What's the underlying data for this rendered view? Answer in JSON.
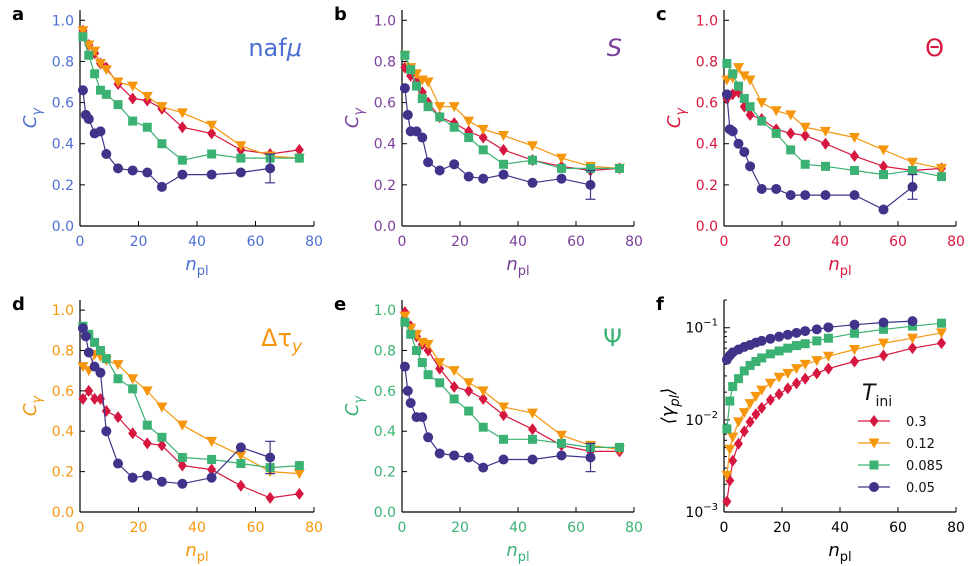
{
  "legend": {
    "title": "T",
    "title_sub": "ini",
    "entries": [
      "0.3",
      "0.12",
      "0.085",
      "0.05"
    ]
  },
  "series_colors": [
    "#d6173f",
    "#f5960d",
    "#3bb273",
    "#3f3489"
  ],
  "series_markers": [
    "diamond",
    "triangle-down",
    "square",
    "circle"
  ],
  "chart_data": [
    {
      "type": "line",
      "panel": "a",
      "title": "naf",
      "title_suffix": "μ",
      "color": "#4d6fd4",
      "xlabel": "n",
      "xlabel_sub": "pl",
      "ylabel": "C",
      "ylabel_sub": "γ",
      "xlim": [
        0,
        80
      ],
      "ylim": [
        0,
        1.05
      ],
      "xticks": [
        "0",
        "20",
        "40",
        "60",
        "80"
      ],
      "yticks": [
        "0.0",
        "0.2",
        "0.4",
        "0.6",
        "0.8",
        "1.0"
      ],
      "series": [
        {
          "x": [
            1,
            3,
            5,
            7,
            9,
            13,
            18,
            23,
            28,
            35,
            45,
            55,
            65,
            75
          ],
          "y": [
            0.95,
            0.88,
            0.84,
            0.79,
            0.77,
            0.69,
            0.62,
            0.61,
            0.57,
            0.48,
            0.45,
            0.37,
            0.35,
            0.37
          ]
        },
        {
          "x": [
            1,
            3,
            5,
            7,
            9,
            13,
            18,
            23,
            28,
            35,
            45,
            55,
            65,
            75
          ],
          "y": [
            0.95,
            0.88,
            0.85,
            0.79,
            0.76,
            0.7,
            0.68,
            0.63,
            0.58,
            0.55,
            0.49,
            0.39,
            0.34,
            0.33
          ]
        },
        {
          "x": [
            1,
            3,
            5,
            7,
            9,
            13,
            18,
            23,
            28,
            35,
            45,
            55,
            65,
            75
          ],
          "y": [
            0.92,
            0.83,
            0.74,
            0.66,
            0.64,
            0.59,
            0.51,
            0.48,
            0.4,
            0.32,
            0.35,
            0.33,
            0.33,
            0.33
          ]
        },
        {
          "x": [
            1,
            2,
            3,
            5,
            7,
            9,
            13,
            18,
            23,
            28,
            35,
            45,
            55,
            65
          ],
          "y": [
            0.66,
            0.54,
            0.52,
            0.45,
            0.46,
            0.35,
            0.28,
            0.27,
            0.26,
            0.19,
            0.25,
            0.25,
            0.26,
            0.28
          ],
          "error_last": 0.07
        }
      ]
    },
    {
      "type": "line",
      "panel": "b",
      "title": "S",
      "title_suffix": "",
      "color": "#7b3f9c",
      "xlabel": "n",
      "xlabel_sub": "pl",
      "ylabel": "C",
      "ylabel_sub": "γ",
      "xlim": [
        0,
        80
      ],
      "ylim": [
        0,
        1.05
      ],
      "xticks": [
        "0",
        "20",
        "40",
        "60",
        "80"
      ],
      "yticks": [
        "0.0",
        "0.2",
        "0.4",
        "0.6",
        "0.8",
        "1.0"
      ],
      "series": [
        {
          "x": [
            1,
            3,
            5,
            7,
            9,
            13,
            18,
            23,
            28,
            35,
            45,
            55,
            65,
            75
          ],
          "y": [
            0.77,
            0.73,
            0.7,
            0.65,
            0.6,
            0.53,
            0.5,
            0.46,
            0.43,
            0.37,
            0.32,
            0.29,
            0.27,
            0.28
          ]
        },
        {
          "x": [
            1,
            3,
            5,
            7,
            9,
            13,
            18,
            23,
            28,
            35,
            45,
            55,
            65,
            75
          ],
          "y": [
            0.83,
            0.77,
            0.74,
            0.71,
            0.7,
            0.58,
            0.58,
            0.51,
            0.47,
            0.44,
            0.39,
            0.33,
            0.29,
            0.28
          ]
        },
        {
          "x": [
            1,
            3,
            5,
            7,
            9,
            13,
            18,
            23,
            28,
            35,
            45,
            55,
            65,
            75
          ],
          "y": [
            0.83,
            0.76,
            0.68,
            0.62,
            0.58,
            0.53,
            0.48,
            0.43,
            0.37,
            0.3,
            0.32,
            0.28,
            0.28,
            0.28
          ]
        },
        {
          "x": [
            1,
            2,
            3,
            5,
            7,
            9,
            13,
            18,
            23,
            28,
            35,
            45,
            55,
            65
          ],
          "y": [
            0.67,
            0.54,
            0.46,
            0.46,
            0.43,
            0.31,
            0.27,
            0.3,
            0.24,
            0.23,
            0.25,
            0.21,
            0.23,
            0.2
          ],
          "error_last": 0.07
        }
      ]
    },
    {
      "type": "line",
      "panel": "c",
      "title": "Θ",
      "title_suffix": "",
      "color": "#d6173f",
      "xlabel": "n",
      "xlabel_sub": "pl",
      "ylabel": "C",
      "ylabel_sub": "γ",
      "xlim": [
        0,
        80
      ],
      "ylim": [
        0,
        1.05
      ],
      "xticks": [
        "0",
        "20",
        "40",
        "60",
        "80"
      ],
      "yticks": [
        "0.0",
        "0.2",
        "0.4",
        "0.6",
        "0.8",
        "1.0"
      ],
      "series": [
        {
          "x": [
            1,
            3,
            5,
            7,
            9,
            13,
            18,
            23,
            28,
            35,
            45,
            55,
            65,
            75
          ],
          "y": [
            0.62,
            0.64,
            0.65,
            0.58,
            0.54,
            0.52,
            0.47,
            0.45,
            0.44,
            0.4,
            0.34,
            0.29,
            0.27,
            0.28
          ]
        },
        {
          "x": [
            1,
            3,
            5,
            7,
            9,
            13,
            18,
            23,
            28,
            35,
            45,
            55,
            65,
            75
          ],
          "y": [
            0.71,
            0.72,
            0.77,
            0.73,
            0.71,
            0.6,
            0.56,
            0.54,
            0.48,
            0.46,
            0.43,
            0.37,
            0.31,
            0.28
          ]
        },
        {
          "x": [
            1,
            3,
            5,
            7,
            9,
            13,
            18,
            23,
            28,
            35,
            45,
            55,
            65,
            75
          ],
          "y": [
            0.79,
            0.74,
            0.68,
            0.62,
            0.58,
            0.51,
            0.45,
            0.37,
            0.3,
            0.29,
            0.27,
            0.25,
            0.27,
            0.24
          ]
        },
        {
          "x": [
            1,
            2,
            3,
            5,
            7,
            9,
            13,
            18,
            23,
            28,
            35,
            45,
            55,
            65
          ],
          "y": [
            0.64,
            0.47,
            0.46,
            0.4,
            0.36,
            0.29,
            0.18,
            0.18,
            0.15,
            0.15,
            0.15,
            0.15,
            0.08,
            0.19
          ],
          "error_last": 0.06
        }
      ]
    },
    {
      "type": "line",
      "panel": "d",
      "title": "Δτ",
      "title_suffix": "y",
      "color": "#f5960d",
      "xlabel": "n",
      "xlabel_sub": "pl",
      "ylabel": "C",
      "ylabel_sub": "γ",
      "xlim": [
        0,
        80
      ],
      "ylim": [
        0,
        1.05
      ],
      "xticks": [
        "0",
        "20",
        "40",
        "60",
        "80"
      ],
      "yticks": [
        "0.0",
        "0.2",
        "0.4",
        "0.6",
        "0.8",
        "1.0"
      ],
      "series": [
        {
          "x": [
            1,
            3,
            5,
            7,
            9,
            13,
            18,
            23,
            28,
            35,
            45,
            55,
            65,
            75
          ],
          "y": [
            0.56,
            0.6,
            0.56,
            0.56,
            0.5,
            0.47,
            0.39,
            0.34,
            0.33,
            0.23,
            0.21,
            0.13,
            0.07,
            0.09
          ]
        },
        {
          "x": [
            1,
            3,
            5,
            7,
            9,
            13,
            18,
            23,
            28,
            35,
            45,
            55,
            65,
            75
          ],
          "y": [
            0.72,
            0.7,
            0.78,
            0.77,
            0.75,
            0.73,
            0.66,
            0.6,
            0.52,
            0.43,
            0.35,
            0.28,
            0.2,
            0.19
          ]
        },
        {
          "x": [
            1,
            3,
            5,
            7,
            9,
            13,
            18,
            23,
            28,
            35,
            45,
            55,
            65,
            75
          ],
          "y": [
            0.92,
            0.88,
            0.84,
            0.8,
            0.76,
            0.66,
            0.61,
            0.43,
            0.37,
            0.27,
            0.26,
            0.24,
            0.22,
            0.23
          ]
        },
        {
          "x": [
            1,
            2,
            3,
            5,
            7,
            9,
            13,
            18,
            23,
            28,
            35,
            45,
            55,
            65
          ],
          "y": [
            0.91,
            0.87,
            0.79,
            0.72,
            0.69,
            0.4,
            0.24,
            0.17,
            0.18,
            0.15,
            0.14,
            0.17,
            0.32,
            0.27
          ],
          "error_last": 0.08
        }
      ]
    },
    {
      "type": "line",
      "panel": "e",
      "title": "Ψ",
      "title_suffix": "",
      "color": "#3bb273",
      "xlabel": "n",
      "xlabel_sub": "pl",
      "ylabel": "C",
      "ylabel_sub": "γ",
      "xlim": [
        0,
        80
      ],
      "ylim": [
        0,
        1.05
      ],
      "xticks": [
        "0",
        "20",
        "40",
        "60",
        "80"
      ],
      "yticks": [
        "0.0",
        "0.2",
        "0.4",
        "0.6",
        "0.8",
        "1.0"
      ],
      "series": [
        {
          "x": [
            1,
            3,
            5,
            7,
            9,
            13,
            18,
            23,
            28,
            35,
            45,
            55,
            65,
            75
          ],
          "y": [
            0.99,
            0.92,
            0.87,
            0.83,
            0.8,
            0.71,
            0.62,
            0.6,
            0.56,
            0.48,
            0.41,
            0.33,
            0.3,
            0.3
          ]
        },
        {
          "x": [
            1,
            3,
            5,
            7,
            9,
            13,
            18,
            23,
            28,
            35,
            45,
            55,
            65,
            75
          ],
          "y": [
            0.97,
            0.91,
            0.88,
            0.84,
            0.83,
            0.74,
            0.7,
            0.64,
            0.6,
            0.52,
            0.49,
            0.38,
            0.33,
            0.31
          ]
        },
        {
          "x": [
            1,
            3,
            5,
            7,
            9,
            13,
            18,
            23,
            28,
            35,
            45,
            55,
            65,
            75
          ],
          "y": [
            0.94,
            0.88,
            0.8,
            0.74,
            0.68,
            0.64,
            0.56,
            0.5,
            0.42,
            0.36,
            0.36,
            0.34,
            0.32,
            0.32
          ]
        },
        {
          "x": [
            1,
            2,
            3,
            5,
            7,
            9,
            13,
            18,
            23,
            28,
            35,
            45,
            55,
            65
          ],
          "y": [
            0.72,
            0.6,
            0.54,
            0.47,
            0.47,
            0.37,
            0.29,
            0.28,
            0.27,
            0.22,
            0.26,
            0.26,
            0.28,
            0.27
          ],
          "error_last": 0.07
        }
      ]
    },
    {
      "type": "line",
      "panel": "f",
      "title": "",
      "title_suffix": "",
      "color": "#000000",
      "xlabel": "n",
      "xlabel_sub": "pl",
      "ylabel": "⟨γ",
      "ylabel_sub": "pl",
      "ylabel_close": "⟩",
      "yscale": "log",
      "xlim": [
        0,
        80
      ],
      "ylim": [
        0.001,
        0.2
      ],
      "xticks": [
        "0",
        "20",
        "40",
        "60",
        "80"
      ],
      "yticks_log": [
        {
          "base": "10",
          "exp": "−3"
        },
        {
          "base": "10",
          "exp": "−2"
        },
        {
          "base": "10",
          "exp": "−1"
        }
      ],
      "series": [
        {
          "x": [
            1,
            2,
            3,
            5,
            7,
            9,
            11,
            13,
            16,
            19,
            22,
            25,
            28,
            32,
            36,
            45,
            55,
            65,
            75
          ],
          "y": [
            0.0013,
            0.0022,
            0.0036,
            0.0055,
            0.0075,
            0.0095,
            0.0115,
            0.0135,
            0.0165,
            0.019,
            0.022,
            0.025,
            0.028,
            0.032,
            0.036,
            0.043,
            0.05,
            0.06,
            0.068
          ]
        },
        {
          "x": [
            1,
            2,
            3,
            5,
            7,
            9,
            11,
            13,
            16,
            19,
            22,
            25,
            28,
            32,
            36,
            45,
            55,
            65,
            75
          ],
          "y": [
            0.0025,
            0.0048,
            0.0065,
            0.0095,
            0.012,
            0.015,
            0.018,
            0.021,
            0.025,
            0.029,
            0.032,
            0.036,
            0.04,
            0.044,
            0.049,
            0.058,
            0.068,
            0.077,
            0.088
          ]
        },
        {
          "x": [
            1,
            2,
            3,
            5,
            7,
            9,
            11,
            13,
            16,
            19,
            22,
            25,
            28,
            32,
            36,
            45,
            55,
            65,
            75
          ],
          "y": [
            0.008,
            0.016,
            0.023,
            0.028,
            0.034,
            0.039,
            0.043,
            0.047,
            0.052,
            0.056,
            0.06,
            0.064,
            0.067,
            0.072,
            0.077,
            0.087,
            0.096,
            0.104,
            0.112
          ]
        },
        {
          "x": [
            1,
            2,
            3,
            5,
            7,
            9,
            11,
            13,
            16,
            19,
            22,
            25,
            28,
            32,
            36,
            45,
            55,
            65
          ],
          "y": [
            0.045,
            0.05,
            0.054,
            0.058,
            0.062,
            0.065,
            0.069,
            0.072,
            0.076,
            0.08,
            0.084,
            0.088,
            0.092,
            0.096,
            0.101,
            0.108,
            0.114,
            0.118
          ]
        }
      ]
    }
  ]
}
